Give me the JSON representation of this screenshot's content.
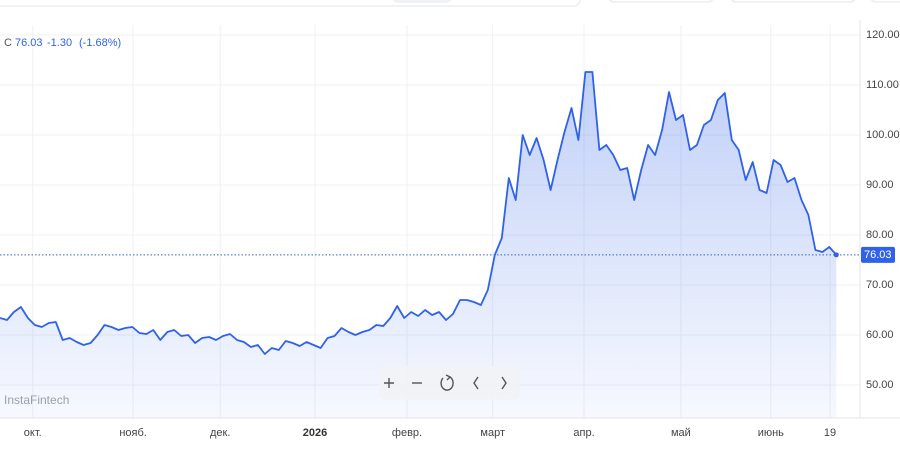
{
  "chart_data": {
    "type": "area",
    "header": {
      "symbol": "C",
      "price": "76.03",
      "change": "-1.30",
      "change_pct": "(-1.68%)"
    },
    "watermark": "InstaFintech",
    "color": "#2f62e8",
    "values": [
      63.4,
      63,
      64.6,
      65.6,
      63.4,
      62,
      61.6,
      62.4,
      62.6,
      59,
      59.4,
      58.6,
      58,
      58.4,
      60,
      62,
      61.6,
      61,
      61.4,
      61.6,
      60.4,
      60.2,
      61,
      59,
      60.6,
      61,
      59.8,
      60,
      58.4,
      59.4,
      59.6,
      59,
      59.8,
      60.2,
      59,
      58.6,
      57.6,
      58,
      56.2,
      57.4,
      57,
      58.8,
      58.4,
      57.8,
      58.6,
      58,
      57.4,
      59.4,
      59.8,
      61.4,
      60.6,
      60,
      60.6,
      61,
      62,
      61.8,
      63.4,
      65.8,
      63.4,
      64.6,
      63.8,
      65,
      64,
      64.6,
      63,
      64.2,
      67,
      67,
      66.6,
      66,
      69,
      76,
      79.4,
      91.4,
      87,
      100,
      96,
      99.4,
      95,
      89,
      95,
      100.6,
      105.4,
      99,
      112.6,
      112.6,
      97,
      98,
      96,
      93,
      93.4,
      87,
      93,
      98,
      96,
      101,
      108.6,
      103,
      104,
      97,
      98,
      102,
      103,
      107,
      108.4,
      99,
      97,
      91,
      94.6,
      89,
      88.4,
      95,
      94,
      90.6,
      91.4,
      87,
      84,
      77,
      76.6,
      77.6,
      76.03
    ],
    "xlim": [
      0,
      123.4
    ],
    "xticks": [
      {
        "value": 4.7,
        "label": "окт."
      },
      {
        "value": 19.1,
        "label": "нояб."
      },
      {
        "value": 31.6,
        "label": "дек."
      },
      {
        "value": 45.2,
        "label": "2026"
      },
      {
        "value": 58.4,
        "label": "февр."
      },
      {
        "value": 70.7,
        "label": "март"
      },
      {
        "value": 83.8,
        "label": "апр."
      },
      {
        "value": 97.7,
        "label": "май"
      },
      {
        "value": 110.6,
        "label": "июнь"
      },
      {
        "value": 119.1,
        "label": "19"
      }
    ],
    "ylim": [
      43.4,
      122
    ],
    "yticks": [
      {
        "value": 50,
        "label": "50.00"
      },
      {
        "value": 60,
        "label": "60.00"
      },
      {
        "value": 70,
        "label": "70.00"
      },
      {
        "value": 80,
        "label": "80.00"
      },
      {
        "value": 90,
        "label": "90.00"
      },
      {
        "value": 100,
        "label": "100.00"
      },
      {
        "value": 110,
        "label": "110.00"
      },
      {
        "value": 120,
        "label": "120.00"
      }
    ],
    "grid": true
  }
}
